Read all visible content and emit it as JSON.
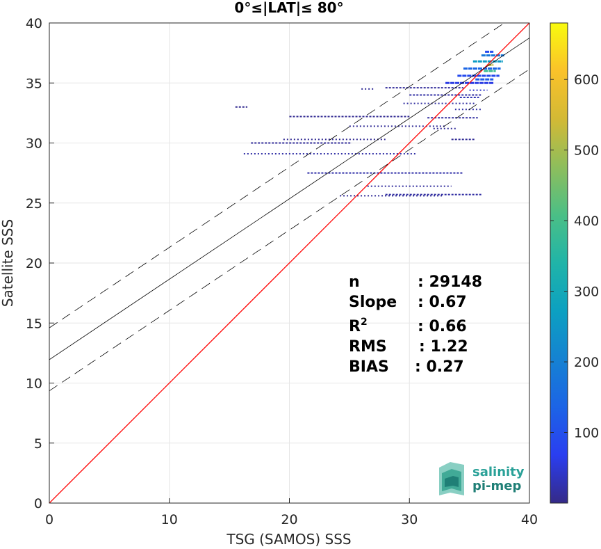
{
  "chart_data": {
    "type": "heatmap",
    "title": "0°≤|LAT|≤ 80°",
    "xlabel": "TSG (SAMOS) SSS",
    "ylabel": "Satellite SSS",
    "xlim": [
      0,
      40
    ],
    "ylim": [
      0,
      40
    ],
    "xticks": [
      "0",
      "10",
      "20",
      "30",
      "40"
    ],
    "yticks": [
      "0",
      "5",
      "10",
      "15",
      "20",
      "25",
      "30",
      "35",
      "40"
    ],
    "grid": true,
    "one_to_one_line": {
      "color": "#ff0000",
      "x": [
        0,
        40
      ],
      "y": [
        0,
        40
      ]
    },
    "fit_line": {
      "color": "#000000",
      "slope": 0.67,
      "intercept": 11.95
    },
    "confidence_lines": [
      {
        "style": "dashed",
        "slope": 0.67,
        "intercept": 14.6
      },
      {
        "style": "dashed",
        "slope": 0.67,
        "intercept": 9.35
      }
    ],
    "colorbar": {
      "range": [
        0,
        680
      ],
      "ticks": [
        "100",
        "200",
        "300",
        "400",
        "500",
        "600"
      ],
      "colormap": "parula"
    },
    "density_segments": [
      {
        "x0": 16.2,
        "x1": 30.5,
        "y": 29.1,
        "c": 20
      },
      {
        "x0": 16.8,
        "x1": 25.2,
        "y": 30.0,
        "c": 12
      },
      {
        "x0": 19.5,
        "x1": 28.0,
        "y": 30.3,
        "c": 8
      },
      {
        "x0": 21.5,
        "x1": 34.5,
        "y": 27.5,
        "c": 22
      },
      {
        "x0": 24.2,
        "x1": 32.8,
        "y": 25.6,
        "c": 10
      },
      {
        "x0": 28.0,
        "x1": 36.0,
        "y": 25.7,
        "c": 18
      },
      {
        "x0": 26.5,
        "x1": 33.5,
        "y": 26.4,
        "c": 14
      },
      {
        "x0": 20.0,
        "x1": 30.0,
        "y": 32.2,
        "c": 8
      },
      {
        "x0": 25.0,
        "x1": 33.0,
        "y": 31.4,
        "c": 10
      },
      {
        "x0": 28.0,
        "x1": 34.5,
        "y": 34.6,
        "c": 12
      },
      {
        "x0": 29.5,
        "x1": 35.5,
        "y": 33.3,
        "c": 16
      },
      {
        "x0": 30.0,
        "x1": 36.0,
        "y": 34.0,
        "c": 18
      },
      {
        "x0": 26.0,
        "x1": 27.0,
        "y": 34.5,
        "c": 10
      },
      {
        "x0": 31.5,
        "x1": 35.7,
        "y": 32.1,
        "c": 16
      },
      {
        "x0": 32.0,
        "x1": 34.0,
        "y": 31.2,
        "c": 12
      },
      {
        "x0": 33.5,
        "x1": 35.5,
        "y": 30.3,
        "c": 10
      },
      {
        "x0": 33.8,
        "x1": 36.0,
        "y": 32.8,
        "c": 20
      },
      {
        "x0": 15.5,
        "x1": 16.5,
        "y": 33.0,
        "c": 6
      },
      {
        "x0": 33.0,
        "x1": 37.0,
        "y": 35.0,
        "c": 60
      },
      {
        "x0": 34.0,
        "x1": 37.5,
        "y": 35.6,
        "c": 90
      },
      {
        "x0": 34.5,
        "x1": 37.6,
        "y": 36.2,
        "c": 140
      },
      {
        "x0": 35.3,
        "x1": 37.8,
        "y": 36.8,
        "c": 260
      },
      {
        "x0": 36.0,
        "x1": 37.9,
        "y": 37.3,
        "c": 180
      },
      {
        "x0": 36.3,
        "x1": 37.0,
        "y": 37.6,
        "c": 90
      },
      {
        "x0": 35.0,
        "x1": 36.5,
        "y": 34.4,
        "c": 40
      },
      {
        "x0": 35.5,
        "x1": 37.0,
        "y": 35.3,
        "c": 120
      },
      {
        "x0": 36.2,
        "x1": 37.2,
        "y": 36.0,
        "c": 380
      },
      {
        "x0": 34.2,
        "x1": 35.8,
        "y": 33.8,
        "c": 30
      },
      {
        "x0": 36.5,
        "x1": 37.0,
        "y": 36.5,
        "c": 520
      }
    ]
  },
  "stats": [
    {
      "label": "n",
      "value": ": 29148"
    },
    {
      "label": "Slope",
      "value": ": 0.67"
    },
    {
      "label": "R",
      "sup": "2",
      "value": ": 0.66"
    },
    {
      "label": "RMS",
      "value": ": 1.22"
    },
    {
      "label": "BIAS",
      "value": ": 0.27"
    }
  ],
  "logo": {
    "line1": "salinity",
    "line2": "pi-mep",
    "color1": "#2aa198",
    "color2": "#1f7f76"
  }
}
